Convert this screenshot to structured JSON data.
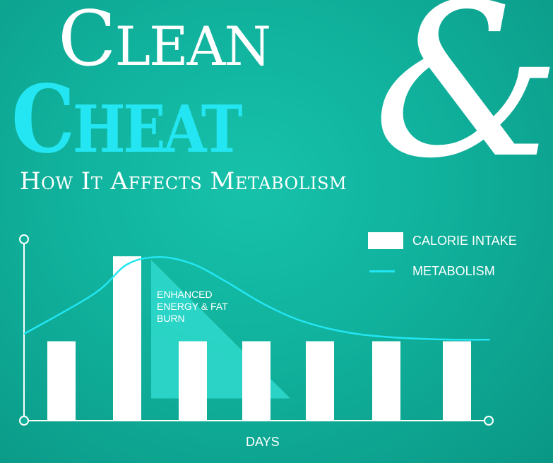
{
  "title": {
    "line1": "Clean",
    "ampersand": "&",
    "line2": "Cheat",
    "subtitle": "How It Affects Metabolism"
  },
  "legend": {
    "calorie_label": "CALORIE INTAKE",
    "metabolism_label": "METABOLISM"
  },
  "colors": {
    "background": "#10b19c",
    "bars": "#ffffff",
    "metabolism_line": "#23e6f2",
    "annotation_fill": "#2fd9cd"
  },
  "chart_data": {
    "type": "bar",
    "xlabel": "DAYS",
    "ylabel": "",
    "categories": [
      "",
      "",
      "",
      "",
      "",
      "",
      ""
    ],
    "series": [
      {
        "name": "CALORIE INTAKE",
        "type": "bar",
        "values": [
          1,
          2.07,
          1,
          1,
          1,
          1,
          1
        ]
      },
      {
        "name": "METABOLISM",
        "type": "line",
        "x": [
          0,
          0.5,
          1,
          1.5,
          2,
          2.5,
          3,
          3.5,
          4,
          4.5,
          5,
          5.5,
          6,
          6.5
        ],
        "values": [
          1.11,
          1.6,
          1.97,
          2.06,
          1.97,
          1.75,
          1.5,
          1.3,
          1.17,
          1.09,
          1.05,
          1.03,
          1.02,
          1.02
        ]
      }
    ],
    "ylim": [
      0,
      2.4
    ],
    "annotation": "ENHANCED ENERGY & FAT BURN",
    "grid": false,
    "legend_position": "top-right"
  }
}
